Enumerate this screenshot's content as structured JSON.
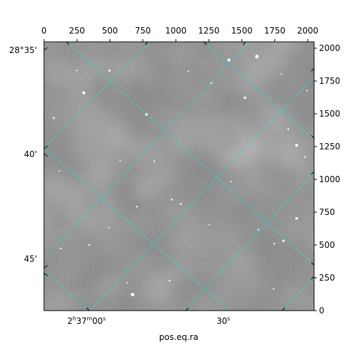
{
  "chart_data": {
    "type": "heatmap",
    "title": "",
    "xlabel": "pos.eq.ra",
    "ylabel": "",
    "pixel_axes": {
      "x_range": [
        0,
        2048
      ],
      "y_range": [
        0,
        2048
      ],
      "x_ticks": [
        "0",
        "250",
        "500",
        "750",
        "1000",
        "1250",
        "1500",
        "1750",
        "2000"
      ],
      "y_ticks": [
        "0",
        "250",
        "500",
        "750",
        "1000",
        "1250",
        "1500",
        "1750",
        "2000"
      ]
    },
    "world_axes": {
      "ra_ticks": [
        {
          "label_main": "2",
          "h": "h",
          "mid": "37",
          "m": "m",
          "sec": "00",
          "s": "s"
        },
        {
          "label_main": "30",
          "s": "s"
        }
      ],
      "dec_ticks": [
        "28°35'",
        "40'",
        "45'"
      ]
    },
    "grid": true,
    "image_colormap": "grayscale",
    "grid_color": "#22dddd"
  }
}
